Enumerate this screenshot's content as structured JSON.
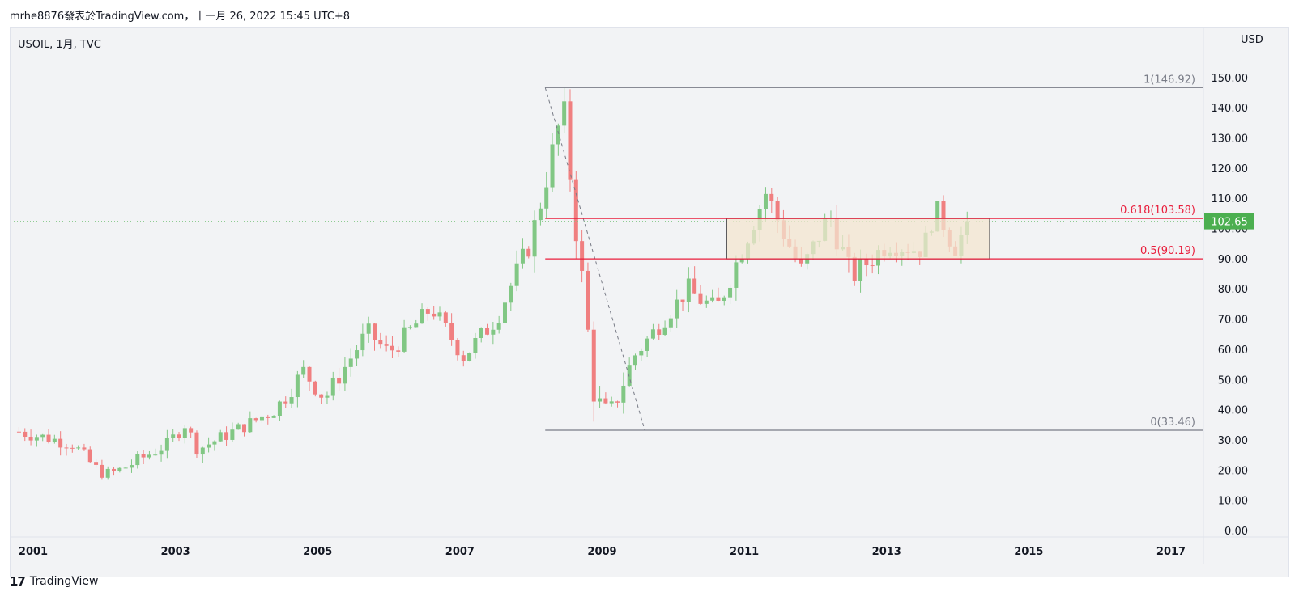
{
  "header": {
    "publish_info": "mrhe8876發表於TradingView.com，十一月 26, 2022 15:45 UTC+8",
    "symbol_info": "USOIL, 1月, TVC",
    "currency": "USD"
  },
  "footer": {
    "brand_mark": "17",
    "brand": "TradingView"
  },
  "colors": {
    "up": "#81c784",
    "down": "#f07f80",
    "fib_level": "#e91e3c",
    "range_box": "#f3e5cf",
    "price_badge": "#4caf50",
    "background": "#f2f3f5"
  },
  "chart_data": {
    "type": "candlestick",
    "x_axis": {
      "ticks": [
        "2001",
        "2003",
        "2005",
        "2007",
        "2009",
        "2011",
        "2013",
        "2015",
        "2017"
      ],
      "range": [
        2000.75,
        2017.4
      ]
    },
    "y_axis": {
      "ticks": [
        "0.00",
        "10.00",
        "20.00",
        "30.00",
        "40.00",
        "50.00",
        "60.00",
        "70.00",
        "80.00",
        "90.00",
        "100.00",
        "110.00",
        "120.00",
        "130.00",
        "140.00",
        "150.00"
      ],
      "range": [
        0,
        152
      ]
    },
    "last_price": "102.65",
    "last_price_value": 102.65,
    "fib_retracement": {
      "levels": [
        {
          "label": "1(146.92)",
          "value": 146.92,
          "color": "#787b86"
        },
        {
          "label": "0.618(103.58)",
          "value": 103.58,
          "color": "#e91e3c"
        },
        {
          "label": "0.5(90.19)",
          "value": 90.19,
          "color": "#e91e3c"
        },
        {
          "label": "0(33.46)",
          "value": 33.46,
          "color": "#787b86"
        }
      ],
      "start": {
        "date": 2008.2,
        "value": 146.92
      },
      "end": {
        "date": 2009.6,
        "value": 33.46
      }
    },
    "range_box": {
      "x": [
        2010.75,
        2014.45
      ],
      "y": [
        90.19,
        103.58
      ]
    },
    "segments": [
      {
        "from": 2000.8,
        "to": 2001.55,
        "start": 33,
        "end": 29,
        "amp": 3
      },
      {
        "from": 2001.55,
        "to": 2001.95,
        "start": 29,
        "end": 19,
        "amp": 3
      },
      {
        "from": 2001.95,
        "to": 2002.2,
        "start": 19,
        "end": 20,
        "amp": 2
      },
      {
        "from": 2002.2,
        "to": 2002.9,
        "start": 20,
        "end": 29,
        "amp": 3
      },
      {
        "from": 2002.9,
        "to": 2003.15,
        "start": 29,
        "end": 36,
        "amp": 3
      },
      {
        "from": 2003.15,
        "to": 2003.3,
        "start": 36,
        "end": 27,
        "amp": 2
      },
      {
        "from": 2003.3,
        "to": 2004.4,
        "start": 27,
        "end": 40,
        "amp": 3
      },
      {
        "from": 2004.4,
        "to": 2004.8,
        "start": 40,
        "end": 53,
        "amp": 4
      },
      {
        "from": 2004.8,
        "to": 2005.1,
        "start": 53,
        "end": 44,
        "amp": 4
      },
      {
        "from": 2005.1,
        "to": 2005.7,
        "start": 44,
        "end": 66,
        "amp": 4
      },
      {
        "from": 2005.7,
        "to": 2006.0,
        "start": 66,
        "end": 59,
        "amp": 4
      },
      {
        "from": 2006.0,
        "to": 2006.6,
        "start": 59,
        "end": 74,
        "amp": 4
      },
      {
        "from": 2006.6,
        "to": 2007.05,
        "start": 74,
        "end": 58,
        "amp": 4
      },
      {
        "from": 2007.05,
        "to": 2007.5,
        "start": 58,
        "end": 70,
        "amp": 4
      },
      {
        "from": 2007.5,
        "to": 2008.0,
        "start": 70,
        "end": 96,
        "amp": 5
      },
      {
        "from": 2008.0,
        "to": 2008.45,
        "start": 96,
        "end": 140,
        "amp": 6
      },
      {
        "from": 2008.45,
        "to": 2008.9,
        "start": 140,
        "end": 44,
        "amp": 8
      },
      {
        "from": 2008.9,
        "to": 2009.1,
        "start": 44,
        "end": 38,
        "amp": 5
      },
      {
        "from": 2009.1,
        "to": 2009.45,
        "start": 38,
        "end": 58,
        "amp": 5
      },
      {
        "from": 2009.45,
        "to": 2010.2,
        "start": 58,
        "end": 80,
        "amp": 4
      },
      {
        "from": 2010.2,
        "to": 2010.6,
        "start": 80,
        "end": 73,
        "amp": 5
      },
      {
        "from": 2010.6,
        "to": 2011.3,
        "start": 73,
        "end": 112,
        "amp": 5
      },
      {
        "from": 2011.3,
        "to": 2011.8,
        "start": 112,
        "end": 86,
        "amp": 6
      },
      {
        "from": 2011.8,
        "to": 2012.2,
        "start": 86,
        "end": 105,
        "amp": 5
      },
      {
        "from": 2012.2,
        "to": 2012.5,
        "start": 105,
        "end": 84,
        "amp": 6
      },
      {
        "from": 2012.5,
        "to": 2013.0,
        "start": 84,
        "end": 95,
        "amp": 5
      },
      {
        "from": 2013.0,
        "to": 2013.5,
        "start": 95,
        "end": 93,
        "amp": 4
      },
      {
        "from": 2013.5,
        "to": 2013.7,
        "start": 93,
        "end": 107,
        "amp": 4
      },
      {
        "from": 2013.7,
        "to": 2013.95,
        "start": 107,
        "end": 93,
        "amp": 4
      },
      {
        "from": 2013.95,
        "to": 2014.15,
        "start": 93,
        "end": 102.65,
        "amp": 4
      }
    ]
  }
}
